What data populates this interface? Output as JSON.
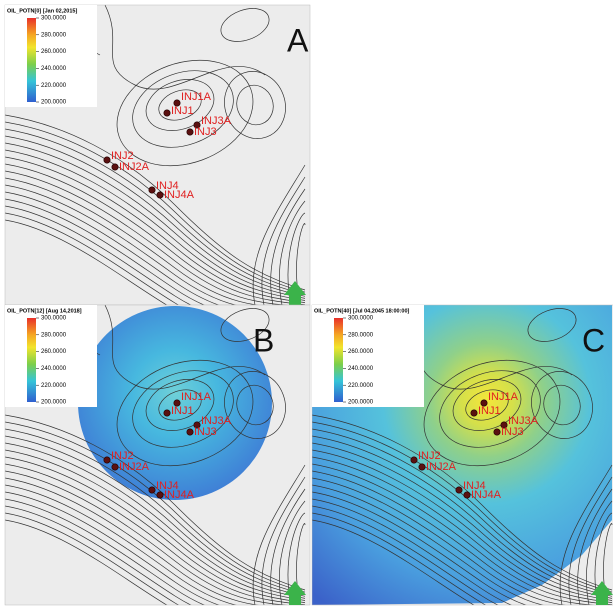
{
  "panels": [
    {
      "label": "A",
      "legend": {
        "title": "OIL_POTN[0] [Jan 02,2015]",
        "ticks": [
          "300.0000",
          "280.0000",
          "260.0000",
          "240.0000",
          "220.0000",
          "200.0000"
        ]
      },
      "wells": [
        "INJ1A",
        "INJ1",
        "INJ3A",
        "INJ3",
        "INJ2",
        "INJ2A",
        "INJ4",
        "INJ4A"
      ]
    },
    {
      "label": "B",
      "legend": {
        "title": "OIL_POTN[12] [Aug 14,2018]",
        "ticks": [
          "300.0000",
          "280.0000",
          "260.0000",
          "240.0000",
          "220.0000",
          "200.0000"
        ]
      },
      "wells": [
        "INJ1A",
        "INJ1",
        "INJ3A",
        "INJ3",
        "INJ2",
        "INJ2A",
        "INJ4",
        "INJ4A"
      ]
    },
    {
      "label": "C",
      "legend": {
        "title": "OIL_POTN[40] [Jul 04,2045 18:00:00]",
        "ticks": [
          "300.0000",
          "280.0000",
          "260.0000",
          "240.0000",
          "220.0000",
          "200.0000"
        ]
      },
      "wells": [
        "INJ1A",
        "INJ1",
        "INJ3A",
        "INJ3",
        "INJ2",
        "INJ2A",
        "INJ4",
        "INJ4A"
      ]
    }
  ]
}
